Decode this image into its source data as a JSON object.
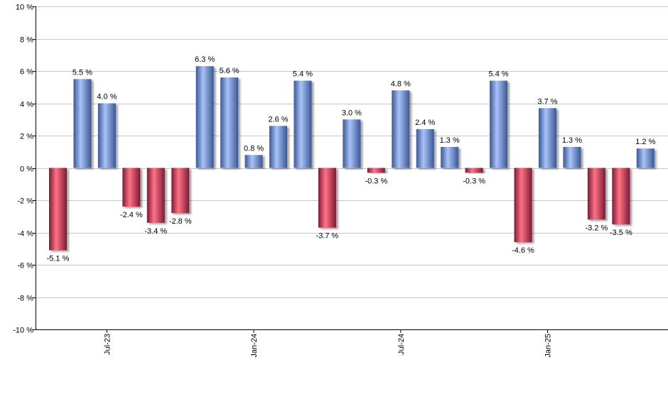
{
  "chart_data": {
    "type": "bar",
    "title": "",
    "xlabel": "",
    "ylabel": "",
    "ylim": [
      -10,
      10
    ],
    "y_ticks": [
      10,
      8,
      6,
      4,
      2,
      0,
      -2,
      -4,
      -6,
      -8,
      -10
    ],
    "y_tick_suffix": " %",
    "grid": true,
    "legend": "none",
    "bar_count": 25,
    "values": [
      -5.1,
      5.5,
      4.0,
      -2.4,
      -3.4,
      -2.8,
      6.3,
      5.6,
      0.8,
      2.6,
      5.4,
      -3.7,
      3.0,
      -0.3,
      4.8,
      2.4,
      1.3,
      -0.3,
      5.4,
      -4.6,
      3.7,
      1.3,
      -3.2,
      -3.5,
      1.2
    ],
    "data_labels": [
      "-5.1 %",
      "5.5 %",
      "4.0 %",
      "-2.4 %",
      "-3.4 %",
      "-2.8 %",
      "6.3 %",
      "5.6 %",
      "0.8 %",
      "2.6 %",
      "5.4 %",
      "-3.7 %",
      "3.0 %",
      "-0.3 %",
      "4.8 %",
      "2.4 %",
      "1.3 %",
      "-0.3 %",
      "5.4 %",
      "-4.6 %",
      "3.7 %",
      "1.3 %",
      "-3.2 %",
      "-3.5 %",
      "1.2 %"
    ],
    "x_tick_labels": [
      {
        "label": "Jul-23",
        "bar_index": 2
      },
      {
        "label": "Jan-24",
        "bar_index": 8
      },
      {
        "label": "Jul-24",
        "bar_index": 14
      },
      {
        "label": "Jan-25",
        "bar_index": 20
      }
    ],
    "colors": {
      "positive_dark": "#3c5794",
      "positive_light": "#a7c3f8",
      "negative_dark": "#7c1a34",
      "negative_light": "#ff7286",
      "grid": "#c8c8c8",
      "axis": "#000000"
    }
  }
}
